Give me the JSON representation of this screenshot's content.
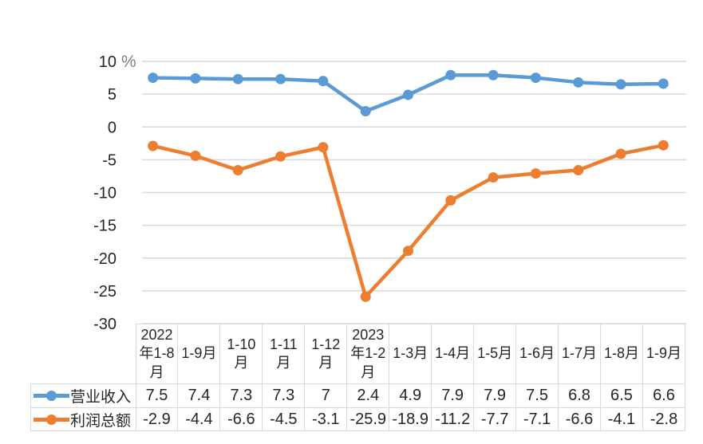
{
  "chart_data": {
    "type": "line",
    "title": "",
    "unit_label": "%",
    "categories": [
      "2022年1-8月",
      "1-9月",
      "1-10月",
      "1-11月",
      "1-12月",
      "2023年1-2月",
      "1-3月",
      "1-4月",
      "1-5月",
      "1-6月",
      "1-7月",
      "1-8月",
      "1-9月"
    ],
    "series": [
      {
        "name": "营业收入",
        "color": "#5B9BD5",
        "values": [
          7.5,
          7.4,
          7.3,
          7.3,
          7,
          2.4,
          4.9,
          7.9,
          7.9,
          7.5,
          6.8,
          6.5,
          6.6
        ]
      },
      {
        "name": "利润总额",
        "color": "#ED7D31",
        "values": [
          -2.9,
          -4.4,
          -6.6,
          -4.5,
          -3.1,
          -25.9,
          -18.9,
          -11.2,
          -7.7,
          -7.1,
          -6.6,
          -4.1,
          -2.8
        ]
      }
    ],
    "y_axis": {
      "min": -30,
      "max": 10,
      "step": 5,
      "ticks": [
        10,
        5,
        0,
        -5,
        -10,
        -15,
        -20,
        -25,
        -30
      ]
    },
    "grid": true,
    "gridline_color": "#D9D9D9",
    "axis_text_color": "#262626",
    "unit_label_color": "#7F7F7F",
    "marker": "circle",
    "legend_position": "data-table-left",
    "data_table": true
  }
}
